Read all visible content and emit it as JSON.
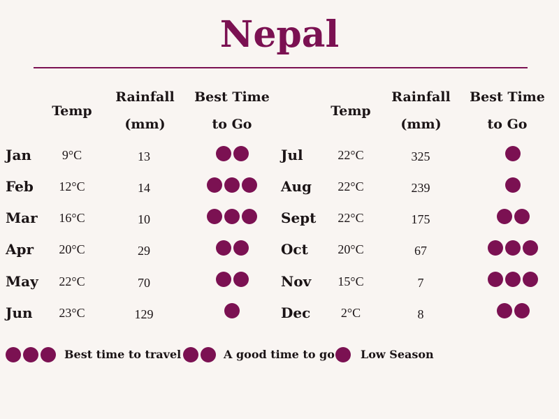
{
  "title": "Nepal",
  "headers": {
    "temp": "Temp",
    "rainfall_1": "Rainfall",
    "rainfall_2": "(mm)",
    "best_1": "Best Time",
    "best_2": "to Go"
  },
  "left_rows": [
    {
      "month": "Jan",
      "temp": "9°C",
      "rain": "13",
      "rating": 2
    },
    {
      "month": "Feb",
      "temp": "12°C",
      "rain": "14",
      "rating": 3
    },
    {
      "month": "Mar",
      "temp": "16°C",
      "rain": "10",
      "rating": 3
    },
    {
      "month": "Apr",
      "temp": "20°C",
      "rain": "29",
      "rating": 2
    },
    {
      "month": "May",
      "temp": "22°C",
      "rain": "70",
      "rating": 2
    },
    {
      "month": "Jun",
      "temp": "23°C",
      "rain": "129",
      "rating": 1
    }
  ],
  "right_rows": [
    {
      "month": "Jul",
      "temp": "22°C",
      "rain": "325",
      "rating": 1
    },
    {
      "month": "Aug",
      "temp": "22°C",
      "rain": "239",
      "rating": 1
    },
    {
      "month": "Sept",
      "temp": "22°C",
      "rain": "175",
      "rating": 2
    },
    {
      "month": "Oct",
      "temp": "20°C",
      "rain": "67",
      "rating": 3
    },
    {
      "month": "Nov",
      "temp": "15°C",
      "rain": "7",
      "rating": 3
    },
    {
      "month": "Dec",
      "temp": "2°C",
      "rain": "8",
      "rating": 2
    }
  ],
  "legend": [
    {
      "rating": 3,
      "label": "Best time to travel"
    },
    {
      "rating": 2,
      "label": "A good time to go"
    },
    {
      "rating": 1,
      "label": "Low Season"
    }
  ],
  "colors": {
    "accent": "#7b1152",
    "background": "#f9f5f2"
  }
}
